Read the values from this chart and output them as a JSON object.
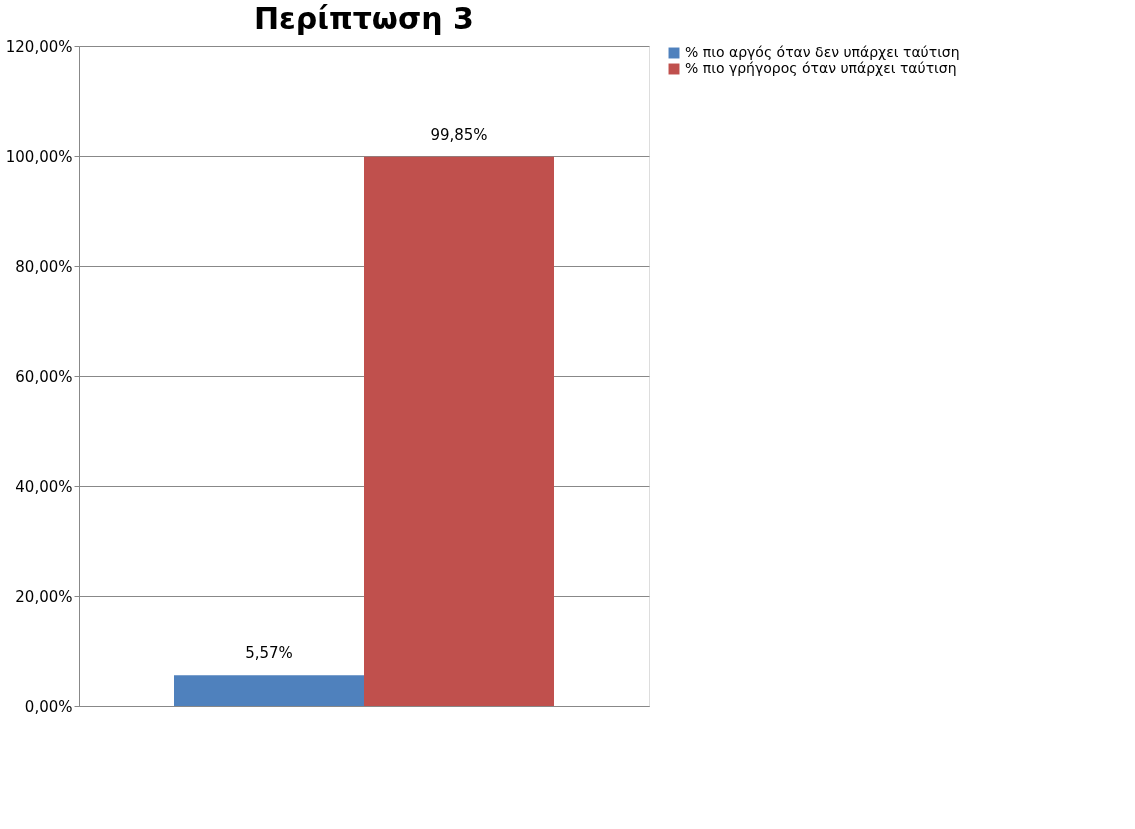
{
  "chart_data": {
    "type": "bar",
    "title": "Περίπτωση 3",
    "categories": [
      null
    ],
    "series": [
      {
        "name": "% πιο αργός όταν δεν υπάρχει ταύτιση",
        "color": "#4f81bd",
        "values": [
          5.57
        ],
        "value_labels": [
          "5,57%"
        ]
      },
      {
        "name": "% πιο γρήγορος όταν υπάρχει ταύτιση",
        "color": "#c0504d",
        "values": [
          99.85
        ],
        "value_labels": [
          "99,85%"
        ]
      }
    ],
    "ylim": [
      0,
      120
    ],
    "yticks": [
      {
        "value": 0,
        "label": "0,00%"
      },
      {
        "value": 20,
        "label": "20,00%"
      },
      {
        "value": 40,
        "label": "40,00%"
      },
      {
        "value": 60,
        "label": "60,00%"
      },
      {
        "value": 80,
        "label": "80,00%"
      },
      {
        "value": 100,
        "label": "100,00%"
      },
      {
        "value": 120,
        "label": "120,00%"
      }
    ],
    "grid": "y",
    "legend": "right",
    "tick_labels": "y"
  }
}
